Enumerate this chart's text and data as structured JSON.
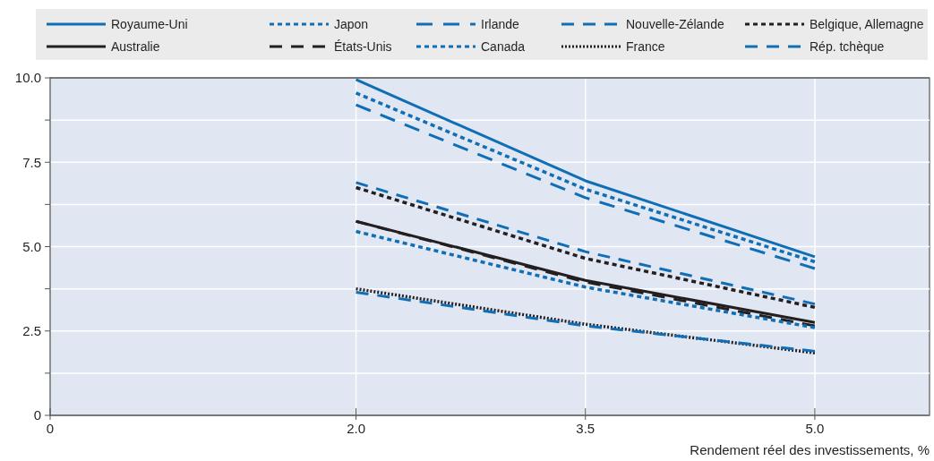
{
  "chart_data": {
    "type": "line",
    "xlabel": "Rendement réel des investissements, %",
    "x": [
      2.0,
      3.5,
      5.0
    ],
    "xlim": [
      0,
      5.75
    ],
    "xticks": [
      0,
      {
        "value": 2.0,
        "label": "2.0"
      },
      3.5,
      {
        "value": 5.0,
        "label": "5.0"
      }
    ],
    "ylim": [
      0,
      10
    ],
    "yticks": [
      0,
      {
        "value": 1.25,
        "label": null
      },
      2.5,
      {
        "value": 3.75,
        "label": null
      },
      {
        "value": 5,
        "label": "5.0"
      },
      {
        "value": 6.25,
        "label": null
      },
      7.5,
      {
        "value": 8.75,
        "label": null
      },
      {
        "value": 10,
        "label": "10.0"
      }
    ],
    "grid": true,
    "legend": "top",
    "series": [
      {
        "name": "Royaume-Uni",
        "color": "#0f6eb4",
        "line_style": "solid",
        "values": [
          9.95,
          6.95,
          4.7
        ]
      },
      {
        "name": "Australie",
        "color": "#231f20",
        "line_style": "solid",
        "values": [
          5.75,
          4.0,
          2.75
        ]
      },
      {
        "name": "Japon",
        "color": "#0f6eb4",
        "line_style": "dotted",
        "values": [
          9.55,
          6.7,
          4.55
        ]
      },
      {
        "name": "États-Unis",
        "color": "#231f20",
        "line_style": "dashed",
        "values": [
          5.75,
          3.95,
          2.65
        ]
      },
      {
        "name": "Irlande",
        "color": "#0f6eb4",
        "line_style": "dashed",
        "values": [
          9.2,
          6.45,
          4.35
        ]
      },
      {
        "name": "Canada",
        "color": "#0f6eb4",
        "line_style": "dotted",
        "values": [
          5.45,
          3.8,
          2.6
        ]
      },
      {
        "name": "Nouvelle-Zélande",
        "color": "#0f6eb4",
        "line_style": "dashed",
        "values": [
          6.9,
          4.85,
          3.3
        ]
      },
      {
        "name": "France",
        "color": "#231f20",
        "line_style": "dotted",
        "values": [
          3.75,
          2.7,
          1.85
        ]
      },
      {
        "name": "Belgique, Allemagne",
        "color": "#231f20",
        "line_style": "dotted",
        "values": [
          6.75,
          4.65,
          3.2
        ]
      },
      {
        "name": "Rép. tchèque",
        "color": "#0f6eb4",
        "line_style": "dashed",
        "values": [
          3.65,
          2.65,
          1.9
        ]
      }
    ]
  }
}
